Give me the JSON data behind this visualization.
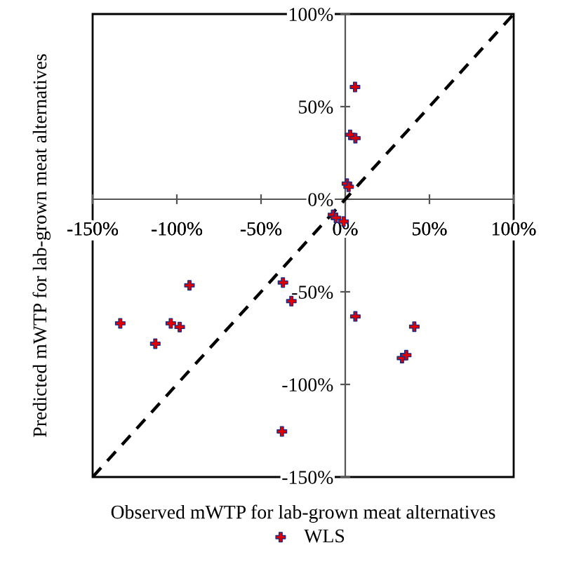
{
  "chart_data": {
    "type": "scatter",
    "xlabel": "Observed mWTP for lab-grown meat alternatives",
    "ylabel": "Predicted mWTP for lab-grown meat alternatives",
    "xlim": [
      -150,
      100
    ],
    "ylim": [
      -150,
      100
    ],
    "xticks": [
      {
        "value": -150,
        "label": "-150%"
      },
      {
        "value": -100,
        "label": "-100%"
      },
      {
        "value": -50,
        "label": "-50%"
      },
      {
        "value": 0,
        "label": "0%"
      },
      {
        "value": 50,
        "label": "50%"
      },
      {
        "value": 100,
        "label": "100%"
      }
    ],
    "yticks": [
      {
        "value": -150,
        "label": "-150%"
      },
      {
        "value": -100,
        "label": "-100%"
      },
      {
        "value": -50,
        "label": "-50%"
      },
      {
        "value": 0,
        "label": "0%"
      },
      {
        "value": 50,
        "label": "50%"
      },
      {
        "value": 100,
        "label": "100%"
      }
    ],
    "grid": false,
    "legend": "bottom",
    "series": [
      {
        "name": "WLS",
        "marker": "cross",
        "color": "#e00000",
        "x": [
          5.8,
          2.9,
          6,
          1,
          2,
          -7.3,
          -5.6,
          -1,
          -133.6,
          -112.8,
          -103.6,
          -98.3,
          -92.5,
          -37,
          -32,
          -37.6,
          6,
          41,
          33.7,
          36.2
        ],
        "values": [
          60.6,
          34.8,
          33,
          8.4,
          6.7,
          -8.4,
          -10,
          -12,
          -67,
          -78,
          -67,
          -69,
          -46.5,
          -45,
          -55,
          -125.4,
          -63.3,
          -68.8,
          -85.8,
          -84.2
        ]
      },
      {
        "type": "line",
        "marker": "none",
        "color": "#000000",
        "line_style": "dashed",
        "x": [
          -150,
          100
        ],
        "values": [
          -150,
          100
        ]
      }
    ]
  }
}
